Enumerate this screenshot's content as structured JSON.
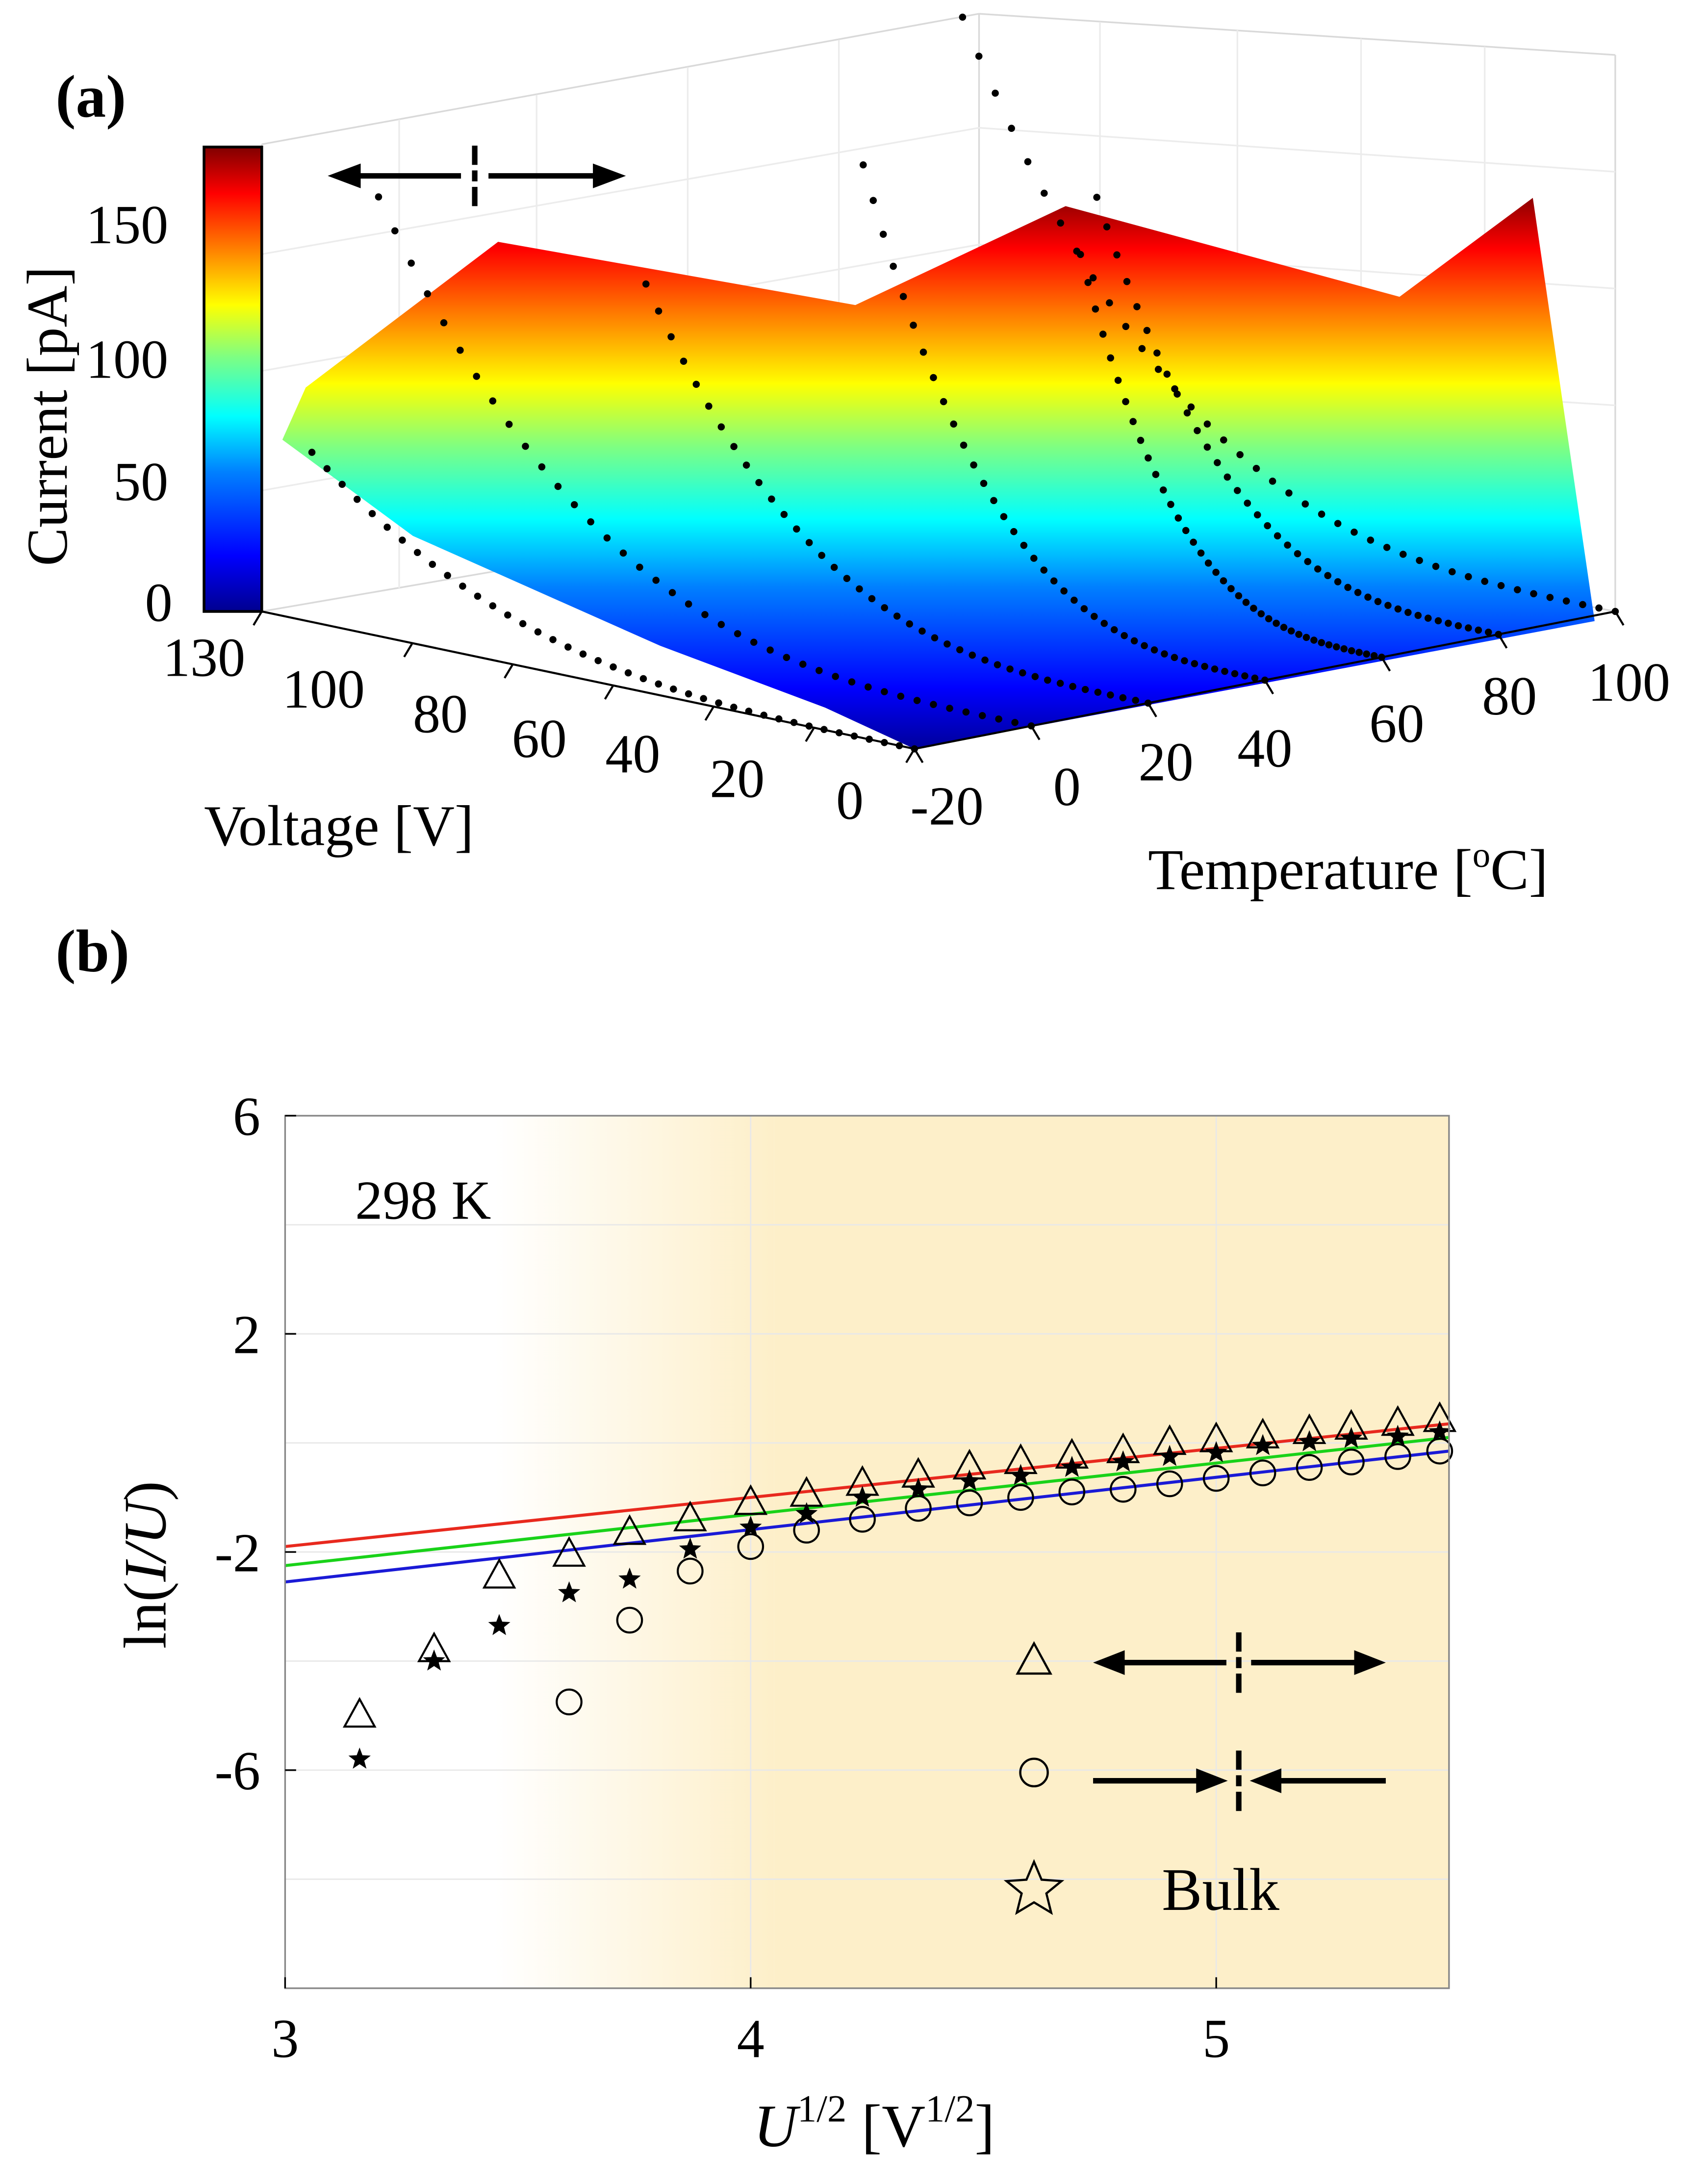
{
  "panels": {
    "a_label": "(a)",
    "b_label": "(b)"
  },
  "chart_data": [
    {
      "id": "a",
      "type": "surface3d",
      "title": "",
      "xlabel": "Voltage [V]",
      "ylabel": "Temperature [",
      "ylabel_sup": "o",
      "ylabel_tail": "C]",
      "zlabel": "Current [pA]",
      "voltage_ticks": [
        "130",
        "100",
        "80",
        "60",
        "40",
        "20",
        "0"
      ],
      "voltage_tick_values": [
        130,
        100,
        80,
        60,
        40,
        20,
        0
      ],
      "temperature_ticks": [
        "-20",
        "0",
        "20",
        "40",
        "60",
        "80",
        "100"
      ],
      "temperature_tick_values": [
        -20,
        0,
        20,
        40,
        60,
        80,
        100
      ],
      "colorbar_ticks": [
        "150",
        "100",
        "50",
        "0"
      ],
      "colorbar_tick_values": [
        150,
        100,
        50,
        0
      ],
      "colorbar_range": [
        0,
        175
      ],
      "colormap": [
        "#00008f",
        "#0000ff",
        "#0080ff",
        "#00ffff",
        "#80ff80",
        "#ffff00",
        "#ff8000",
        "#ff0000",
        "#800000"
      ],
      "xlim": [
        0,
        130
      ],
      "ylim": [
        -20,
        100
      ],
      "zlim": [
        0,
        175
      ],
      "temperatures": [
        -20,
        0,
        20,
        40,
        60,
        80,
        100
      ],
      "max_voltage": [
        120,
        130,
        100,
        80,
        60,
        80,
        130
      ],
      "peak_current": [
        65,
        150,
        120,
        165,
        130,
        135,
        175
      ],
      "annotation": "domain wall arrows (tail-to-tail)"
    },
    {
      "id": "b",
      "type": "scatter",
      "title": "",
      "annotation": "298 K",
      "xlabel_main": "U",
      "xlabel_sup": "1/2",
      "xlabel_tail": " [V",
      "xlabel_sup2": "1/2",
      "xlabel_end": "]",
      "ylabel_pre": "ln(",
      "ylabel_italic": "I/U",
      "ylabel_post": ")",
      "xlim": [
        3,
        5.5
      ],
      "ylim": [
        -10,
        6
      ],
      "xticks": [
        "3",
        "4",
        "5"
      ],
      "xtick_values": [
        3,
        4,
        5
      ],
      "yticks": [
        "6",
        "2",
        "-2",
        "-6"
      ],
      "ytick_values": [
        6,
        2,
        -2,
        -6
      ],
      "shading_start": 3.45,
      "shading_full": 4.05,
      "shading_color": "#fdefc9",
      "series": [
        {
          "name": "tail-to-tail wall",
          "marker": "triangle",
          "color": "#000000",
          "x": [
            3.16,
            3.32,
            3.46,
            3.61,
            3.74,
            3.87,
            4.0,
            4.12,
            4.24,
            4.36,
            4.47,
            4.58,
            4.69,
            4.8,
            4.9,
            5.0,
            5.1,
            5.2,
            5.29,
            5.39,
            5.48
          ],
          "y": [
            -5.0,
            -3.8,
            -2.45,
            -2.05,
            -1.65,
            -1.4,
            -1.1,
            -0.95,
            -0.75,
            -0.6,
            -0.45,
            -0.35,
            -0.25,
            -0.15,
            0.0,
            0.05,
            0.12,
            0.2,
            0.28,
            0.35,
            0.42
          ]
        },
        {
          "name": "head-to-head wall",
          "marker": "circle",
          "color": "#000000",
          "x": [
            3.61,
            3.74,
            3.87,
            4.0,
            4.12,
            4.24,
            4.36,
            4.47,
            4.58,
            4.69,
            4.8,
            4.9,
            5.0,
            5.1,
            5.2,
            5.29,
            5.39,
            5.48
          ],
          "y": [
            -4.75,
            -3.25,
            -2.35,
            -1.9,
            -1.6,
            -1.4,
            -1.2,
            -1.1,
            -1.0,
            -0.9,
            -0.85,
            -0.75,
            -0.65,
            -0.55,
            -0.45,
            -0.35,
            -0.25,
            -0.15
          ]
        },
        {
          "name": "Bulk",
          "marker": "star",
          "color": "#000000",
          "x": [
            3.16,
            3.32,
            3.46,
            3.61,
            3.74,
            3.87,
            4.0,
            4.12,
            4.24,
            4.36,
            4.47,
            4.58,
            4.69,
            4.8,
            4.9,
            5.0,
            5.1,
            5.2,
            5.29,
            5.39,
            5.48
          ],
          "y": [
            -5.8,
            -4.0,
            -3.35,
            -2.75,
            -2.5,
            -1.95,
            -1.55,
            -1.3,
            -1.0,
            -0.85,
            -0.7,
            -0.6,
            -0.45,
            -0.35,
            -0.25,
            -0.18,
            -0.05,
            0.02,
            0.08,
            0.12,
            0.2
          ]
        }
      ],
      "fits": [
        {
          "name": "tail-to-tail fit",
          "color": "#e8291e",
          "x": [
            3.0,
            5.5
          ],
          "y": [
            -1.9,
            0.35
          ]
        },
        {
          "name": "bulk fit",
          "color": "#19d219",
          "x": [
            3.0,
            5.5
          ],
          "y": [
            -2.25,
            0.1
          ]
        },
        {
          "name": "head-to-head fit",
          "color": "#1a1ad6",
          "x": [
            3.0,
            5.5
          ],
          "y": [
            -2.55,
            -0.15
          ]
        }
      ],
      "legend": {
        "position": "bottom-right",
        "bulk_label": "Bulk"
      }
    }
  ]
}
